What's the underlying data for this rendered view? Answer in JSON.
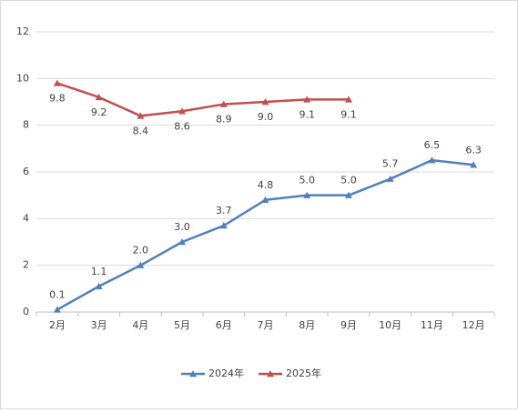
{
  "chart_data": {
    "type": "line",
    "categories": [
      "2月",
      "3月",
      "4月",
      "5月",
      "6月",
      "7月",
      "8月",
      "9月",
      "10月",
      "11月",
      "12月"
    ],
    "series": [
      {
        "name": "2024年",
        "color": "#4f81bd",
        "values": [
          0.1,
          1.1,
          2.0,
          3.0,
          3.7,
          4.8,
          5.0,
          5.0,
          5.7,
          6.5,
          6.3
        ],
        "value_labels": [
          "0.1",
          "1.1",
          "2.0",
          "3.0",
          "3.7",
          "4.8",
          "5.0",
          "5.0",
          "5.7",
          "6.5",
          "6.3"
        ]
      },
      {
        "name": "2025年",
        "color": "#c0504d",
        "values": [
          9.8,
          9.2,
          8.4,
          8.6,
          8.9,
          9.0,
          9.1,
          9.1,
          null,
          null,
          null
        ],
        "value_labels": [
          "9.8",
          "9.2",
          "8.4",
          "8.6",
          "8.9",
          "9.0",
          "9.1",
          "9.1",
          null,
          null,
          null
        ]
      }
    ],
    "ylim": [
      0,
      12
    ],
    "yticks": [
      0,
      2,
      4,
      6,
      8,
      10,
      12
    ],
    "grid": true,
    "legend": "bottom"
  }
}
